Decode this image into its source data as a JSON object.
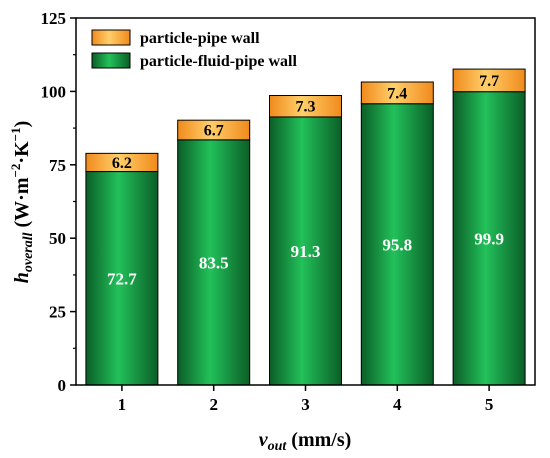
{
  "chart_data": {
    "type": "bar",
    "stacked": true,
    "categories": [
      "1",
      "2",
      "3",
      "4",
      "5"
    ],
    "series": [
      {
        "name": "particle-fluid-pipe wall",
        "values": [
          72.7,
          83.5,
          91.3,
          95.8,
          99.9
        ],
        "color": "#1a9a3f"
      },
      {
        "name": "particle-pipe wall",
        "values": [
          6.2,
          6.7,
          7.3,
          7.4,
          7.7
        ],
        "color": "#f7941d"
      }
    ],
    "data_labels": {
      "particle-fluid-pipe wall": [
        "72.7",
        "83.5",
        "91.3",
        "95.8",
        "99.9"
      ],
      "particle-pipe wall": [
        "6.2",
        "6.7",
        "7.3",
        "7.4",
        "7.7"
      ]
    },
    "ylim": [
      0,
      125
    ],
    "yticks": [
      "0",
      "25",
      "50",
      "75",
      "100",
      "125"
    ],
    "xlabel": {
      "main": "v",
      "sub": "out",
      "rest": " (mm/s)"
    },
    "ylabel": {
      "main": "h",
      "sub": "overall",
      "rest": " (W·m",
      "sup1": "−2",
      "mid": "·K",
      "sup2": "−1",
      "end": ")"
    },
    "legend_position": "top-left",
    "legend": [
      "particle-pipe wall",
      "particle-fluid-pipe wall"
    ],
    "grid": false
  }
}
